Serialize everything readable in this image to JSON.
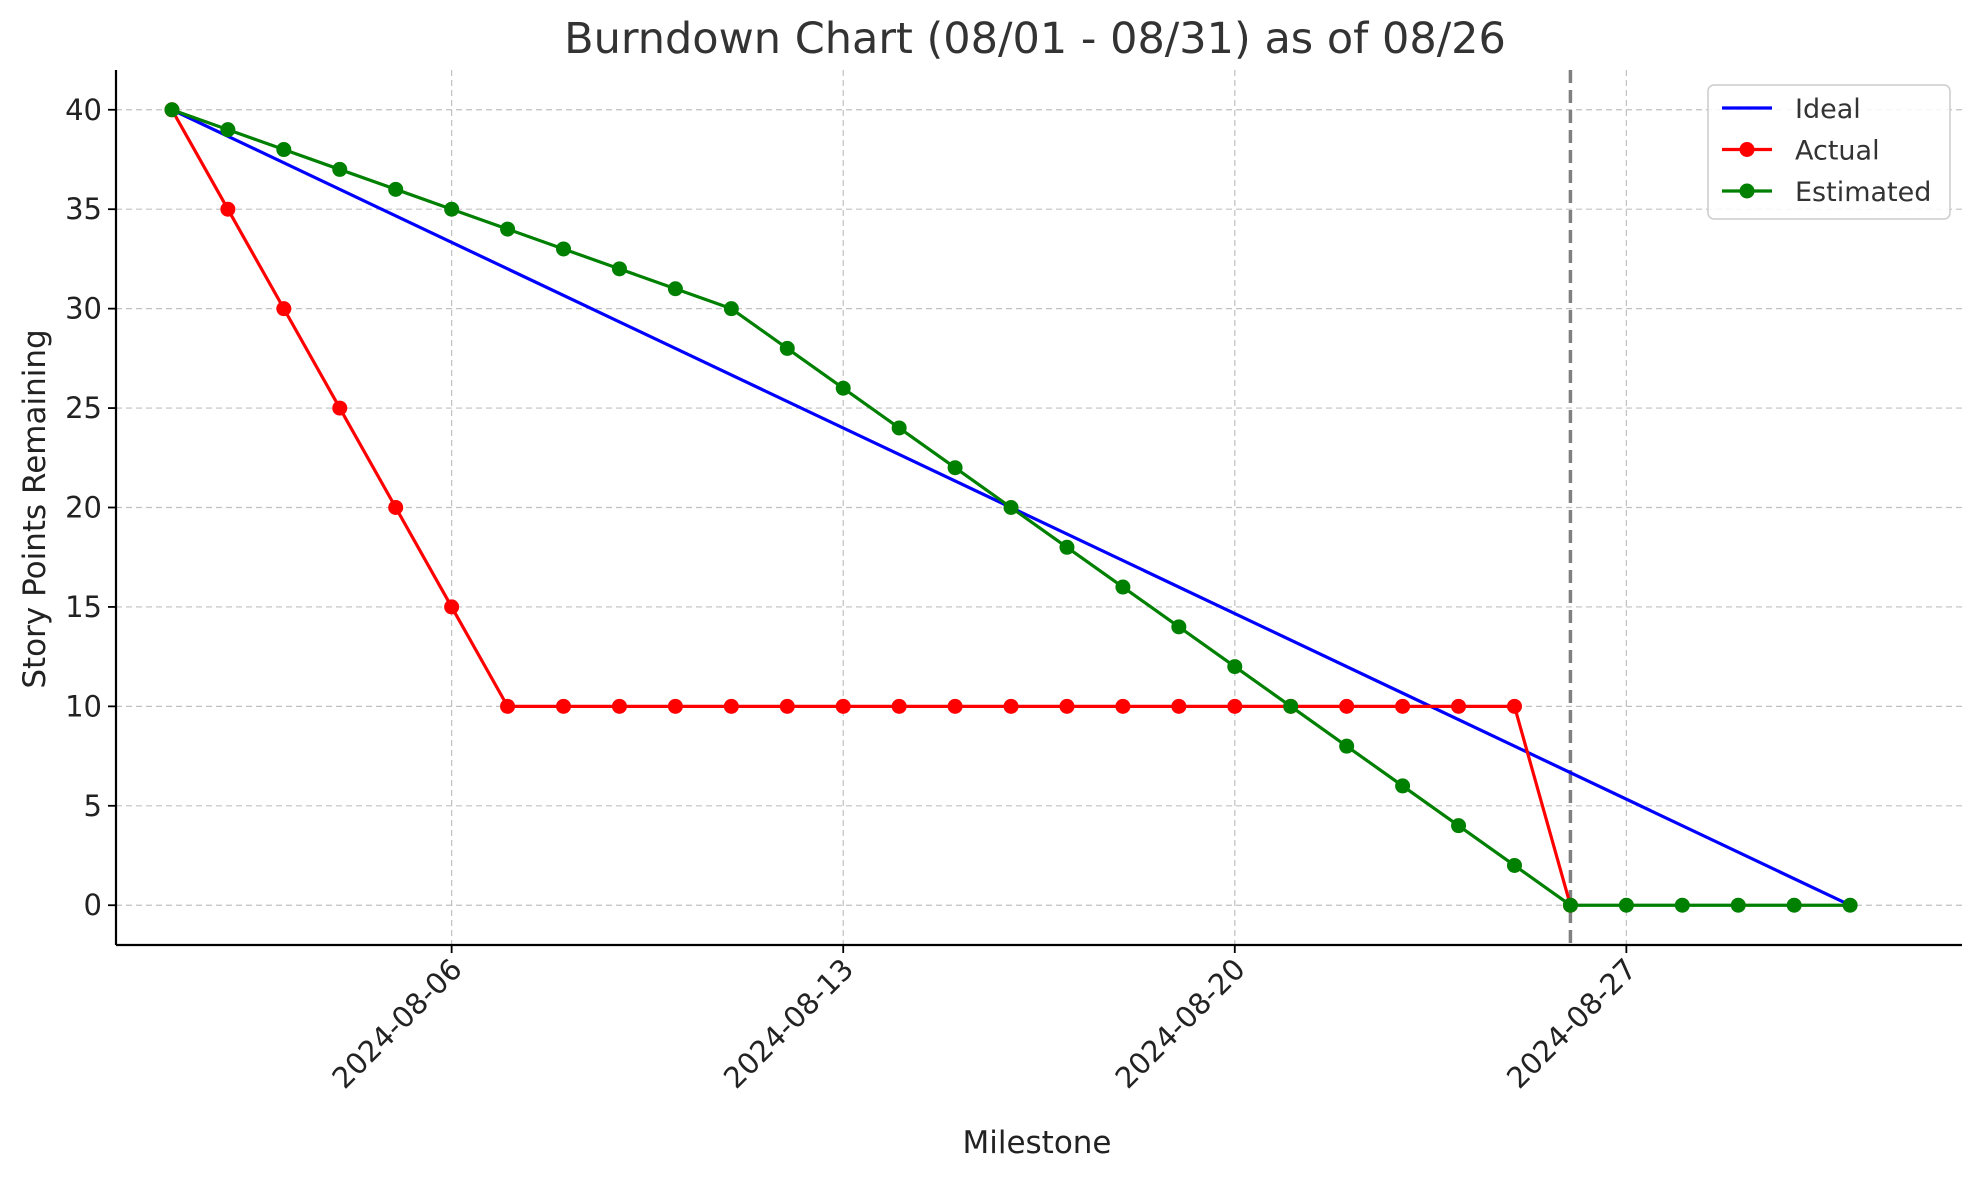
{
  "chart_data": {
    "type": "line",
    "title": "Burndown Chart (08/01 - 08/31) as of 08/26",
    "xlabel": "Milestone",
    "ylabel": "Story Points Remaining",
    "x_type": "date",
    "xlim": [
      "2024-07-31",
      "2024-09-02"
    ],
    "ylim": [
      -2,
      42
    ],
    "x_ticks": [
      "2024-08-06",
      "2024-08-13",
      "2024-08-20",
      "2024-08-27"
    ],
    "y_ticks": [
      0,
      5,
      10,
      15,
      20,
      25,
      30,
      35,
      40
    ],
    "grid": true,
    "legend_position": "top-right",
    "reference_line": {
      "x": "2024-08-26",
      "color": "#808080",
      "style": "dashed"
    },
    "series": [
      {
        "name": "Ideal",
        "color": "#0000ff",
        "marker": "none",
        "x": [
          "2024-08-01",
          "2024-08-31"
        ],
        "values": [
          40,
          0
        ]
      },
      {
        "name": "Actual",
        "color": "#ff0000",
        "marker": "circle",
        "x": [
          "2024-08-01",
          "2024-08-02",
          "2024-08-03",
          "2024-08-04",
          "2024-08-05",
          "2024-08-06",
          "2024-08-07",
          "2024-08-08",
          "2024-08-09",
          "2024-08-10",
          "2024-08-11",
          "2024-08-12",
          "2024-08-13",
          "2024-08-14",
          "2024-08-15",
          "2024-08-16",
          "2024-08-17",
          "2024-08-18",
          "2024-08-19",
          "2024-08-20",
          "2024-08-21",
          "2024-08-22",
          "2024-08-23",
          "2024-08-24",
          "2024-08-25",
          "2024-08-26"
        ],
        "values": [
          40,
          35,
          30,
          25,
          20,
          15,
          10,
          10,
          10,
          10,
          10,
          10,
          10,
          10,
          10,
          10,
          10,
          10,
          10,
          10,
          10,
          10,
          10,
          10,
          10,
          0
        ]
      },
      {
        "name": "Estimated",
        "color": "#008000",
        "marker": "circle",
        "x": [
          "2024-08-01",
          "2024-08-02",
          "2024-08-03",
          "2024-08-04",
          "2024-08-05",
          "2024-08-06",
          "2024-08-07",
          "2024-08-08",
          "2024-08-09",
          "2024-08-10",
          "2024-08-11",
          "2024-08-12",
          "2024-08-13",
          "2024-08-14",
          "2024-08-15",
          "2024-08-16",
          "2024-08-17",
          "2024-08-18",
          "2024-08-19",
          "2024-08-20",
          "2024-08-21",
          "2024-08-22",
          "2024-08-23",
          "2024-08-24",
          "2024-08-25",
          "2024-08-26",
          "2024-08-27",
          "2024-08-28",
          "2024-08-29",
          "2024-08-30",
          "2024-08-31"
        ],
        "values": [
          40,
          39,
          38,
          37,
          36,
          35,
          34,
          33,
          32,
          31,
          30,
          28,
          26,
          24,
          22,
          20,
          18,
          16,
          14,
          12,
          10,
          8,
          6,
          4,
          2,
          0,
          0,
          0,
          0,
          0,
          0
        ]
      }
    ]
  }
}
